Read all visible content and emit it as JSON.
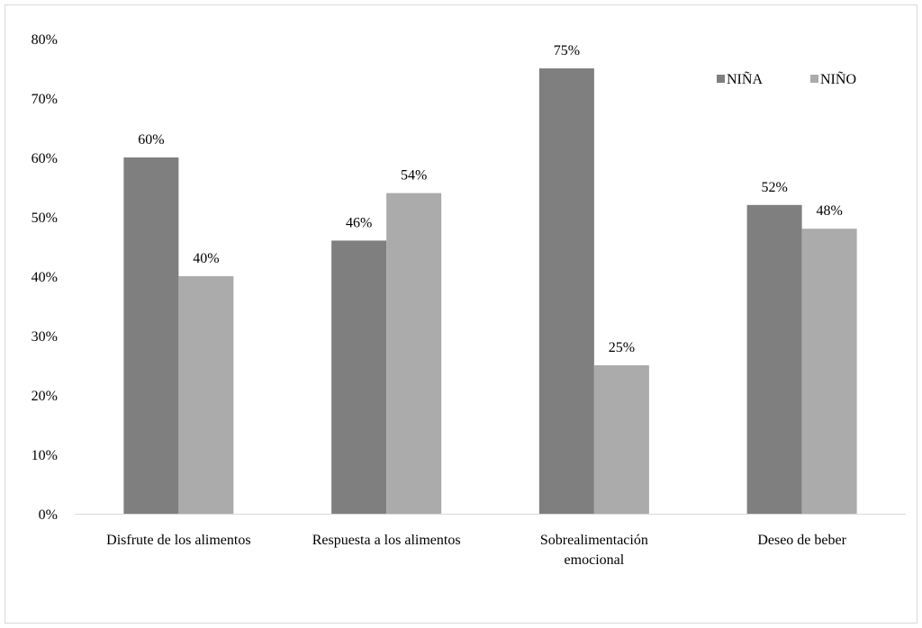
{
  "chart_data": {
    "type": "bar",
    "title": "",
    "xlabel": "",
    "ylabel": "",
    "ylim": [
      0,
      0.8
    ],
    "y_ticks": [
      "0%",
      "10%",
      "20%",
      "30%",
      "40%",
      "50%",
      "60%",
      "70%",
      "80%"
    ],
    "grid": false,
    "legend_position": "top-right",
    "categories": [
      [
        "Disfrute de los alimentos"
      ],
      [
        "Respuesta a los alimentos"
      ],
      [
        "Sobrealimentación",
        "emocional"
      ],
      [
        "Deseo de beber"
      ]
    ],
    "series": [
      {
        "name": "NIÑA",
        "color": "#7f7f7f",
        "values": [
          0.6,
          0.46,
          0.75,
          0.52
        ],
        "labels": [
          "60%",
          "46%",
          "75%",
          "52%"
        ]
      },
      {
        "name": "NIÑO",
        "color": "#ababab",
        "values": [
          0.4,
          0.54,
          0.25,
          0.48
        ],
        "labels": [
          "40%",
          "54%",
          "25%",
          "48%"
        ]
      }
    ]
  }
}
